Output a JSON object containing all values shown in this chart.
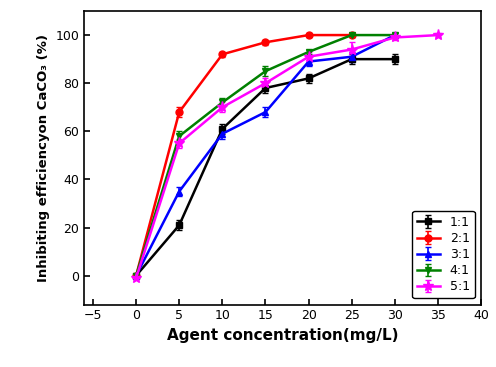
{
  "series": [
    {
      "label": "1:1",
      "color": "black",
      "marker": "s",
      "x": [
        0,
        5,
        10,
        15,
        20,
        25,
        30
      ],
      "y": [
        0,
        21,
        61,
        78,
        82,
        90,
        90
      ],
      "yerr": [
        0.5,
        2,
        2,
        2,
        2,
        2,
        2
      ]
    },
    {
      "label": "2:1",
      "color": "red",
      "marker": "o",
      "x": [
        0,
        5,
        10,
        15,
        20,
        25
      ],
      "y": [
        0,
        68,
        92,
        97,
        100,
        100
      ],
      "yerr": [
        0.5,
        2,
        1,
        1,
        1,
        1
      ]
    },
    {
      "label": "3:1",
      "color": "blue",
      "marker": "^",
      "x": [
        0,
        5,
        10,
        15,
        20,
        25,
        30
      ],
      "y": [
        0,
        35,
        59,
        68,
        89,
        91,
        100
      ],
      "yerr": [
        0.5,
        2,
        2,
        2,
        2,
        2,
        1
      ]
    },
    {
      "label": "4:1",
      "color": "green",
      "marker": "v",
      "x": [
        0,
        5,
        10,
        15,
        20,
        25,
        30
      ],
      "y": [
        0,
        58,
        72,
        85,
        93,
        100,
        100
      ],
      "yerr": [
        0.5,
        2,
        2,
        2,
        1,
        1,
        1
      ]
    },
    {
      "label": "5:1",
      "color": "magenta",
      "marker": "*",
      "x": [
        0,
        5,
        10,
        15,
        20,
        25,
        30,
        35
      ],
      "y": [
        -1,
        55,
        70,
        80,
        91,
        94,
        99,
        100
      ],
      "yerr": [
        0.5,
        2,
        2,
        2,
        2,
        3,
        1,
        1
      ]
    }
  ],
  "xlabel": "Agent concentration(mg/L)",
  "ylabel": "Inhibiting efficiencyon CaCO₃ (%)",
  "xlim": [
    -6,
    40
  ],
  "ylim": [
    -12,
    110
  ],
  "xticks": [
    -5,
    0,
    5,
    10,
    15,
    20,
    25,
    30,
    35,
    40
  ],
  "yticks": [
    0,
    20,
    40,
    60,
    80,
    100
  ],
  "legend_loc": "lower right",
  "figsize": [
    4.96,
    3.67
  ],
  "dpi": 100
}
